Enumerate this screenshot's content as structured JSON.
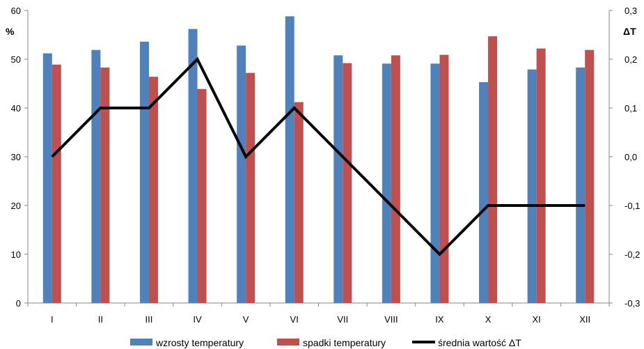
{
  "chart_data": {
    "type": "bar",
    "categories": [
      "I",
      "II",
      "III",
      "IV",
      "V",
      "VI",
      "VII",
      "VIII",
      "IX",
      "X",
      "XI",
      "XII"
    ],
    "series": [
      {
        "name": "wzrosty temperatury",
        "kind": "bar",
        "axis": "left",
        "color": "#4f81bd",
        "values": [
          51.2,
          51.9,
          53.6,
          56.2,
          52.8,
          58.8,
          50.8,
          49.1,
          49.1,
          45.3,
          47.9,
          48.3
        ]
      },
      {
        "name": "spadki temperatury",
        "kind": "bar",
        "axis": "left",
        "color": "#c0504d",
        "values": [
          48.9,
          48.3,
          46.4,
          43.9,
          47.2,
          41.2,
          49.2,
          50.8,
          50.9,
          54.7,
          52.2,
          51.9
        ]
      },
      {
        "name": "średnia wartość ΔT",
        "kind": "line",
        "axis": "right",
        "color": "#000000",
        "values": [
          0.0,
          0.1,
          0.1,
          0.2,
          0.0,
          0.1,
          0.0,
          -0.1,
          -0.2,
          -0.1,
          -0.1,
          -0.1
        ]
      }
    ],
    "y_left": {
      "label": "%",
      "ylim": [
        0,
        60
      ],
      "ticks": [
        "0",
        "10",
        "20",
        "30",
        "40",
        "50",
        "60"
      ]
    },
    "y_right": {
      "label": "ΔT",
      "ylim": [
        -0.3,
        0.3
      ],
      "ticks": [
        "-0,3",
        "-0,2",
        "-0,1",
        "0,0",
        "0,1",
        "0,2",
        "0,3"
      ]
    },
    "grid": false,
    "legend_position": "bottom"
  }
}
